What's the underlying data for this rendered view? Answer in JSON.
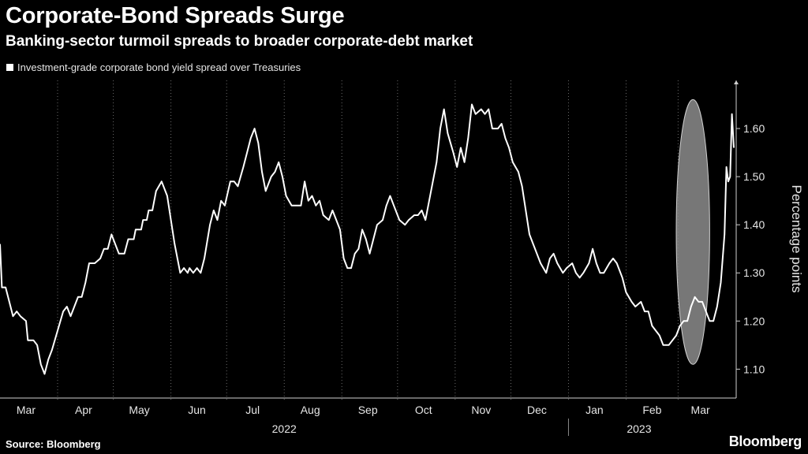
{
  "header": {
    "title": "Corporate-Bond Spreads Surge",
    "subtitle": "Banking-sector turmoil spreads to broader corporate-debt market"
  },
  "footer": {
    "source": "Source: Bloomberg",
    "brand": "Bloomberg"
  },
  "colors": {
    "background": "#000000",
    "line": "#ffffff",
    "grid": "#6b6b6b",
    "highlight_fill": "#8c8c8c"
  },
  "chart_data": {
    "type": "line",
    "title": "Corporate-Bond Spreads Surge",
    "subtitle": "Banking-sector turmoil spreads to broader corporate-debt market",
    "ylabel": "Percentage points",
    "y_axis_position": "right",
    "ylim": [
      1.04,
      1.7
    ],
    "yticks": [
      1.1,
      1.2,
      1.3,
      1.4,
      1.5,
      1.6
    ],
    "ytick_labels": [
      "1.10",
      "1.20",
      "1.30",
      "1.40",
      "1.50",
      "1.60"
    ],
    "grid": "vertical dotted at month boundaries",
    "legend_position": "top-left",
    "x_range": [
      "2022-03-01",
      "2023-03-17"
    ],
    "month_labels": [
      {
        "label": "Mar",
        "date": "2022-03-15"
      },
      {
        "label": "Apr",
        "date": "2022-04-15"
      },
      {
        "label": "May",
        "date": "2022-05-15"
      },
      {
        "label": "Jun",
        "date": "2022-06-15"
      },
      {
        "label": "Jul",
        "date": "2022-07-15"
      },
      {
        "label": "Aug",
        "date": "2022-08-15"
      },
      {
        "label": "Sep",
        "date": "2022-09-15"
      },
      {
        "label": "Oct",
        "date": "2022-10-15"
      },
      {
        "label": "Nov",
        "date": "2022-11-15"
      },
      {
        "label": "Dec",
        "date": "2022-12-15"
      },
      {
        "label": "Jan",
        "date": "2023-01-15"
      },
      {
        "label": "Feb",
        "date": "2023-02-15"
      },
      {
        "label": "Mar",
        "date": "2023-03-13"
      }
    ],
    "month_boundaries": [
      "2022-04-01",
      "2022-05-01",
      "2022-06-01",
      "2022-07-01",
      "2022-08-01",
      "2022-09-01",
      "2022-10-01",
      "2022-11-01",
      "2022-12-01",
      "2023-01-01",
      "2023-02-01",
      "2023-03-01"
    ],
    "year_labels": [
      {
        "label": "2022",
        "date": "2022-08-01"
      },
      {
        "label": "2023",
        "date": "2023-02-08"
      }
    ],
    "year_divider": "2023-01-01",
    "highlight": {
      "shape": "ellipse",
      "x_range": [
        "2023-02-28",
        "2023-03-18"
      ],
      "y_range": [
        1.11,
        1.66
      ]
    },
    "series": [
      {
        "name": "Investment-grade corporate bond yield spread over Treasuries",
        "points": [
          [
            "2022-03-01",
            1.36
          ],
          [
            "2022-03-02",
            1.27
          ],
          [
            "2022-03-04",
            1.27
          ],
          [
            "2022-03-06",
            1.24
          ],
          [
            "2022-03-08",
            1.21
          ],
          [
            "2022-03-10",
            1.22
          ],
          [
            "2022-03-12",
            1.21
          ],
          [
            "2022-03-15",
            1.2
          ],
          [
            "2022-03-16",
            1.16
          ],
          [
            "2022-03-19",
            1.16
          ],
          [
            "2022-03-21",
            1.15
          ],
          [
            "2022-03-23",
            1.11
          ],
          [
            "2022-03-25",
            1.09
          ],
          [
            "2022-03-27",
            1.12
          ],
          [
            "2022-03-29",
            1.14
          ],
          [
            "2022-04-01",
            1.18
          ],
          [
            "2022-04-04",
            1.22
          ],
          [
            "2022-04-06",
            1.23
          ],
          [
            "2022-04-08",
            1.21
          ],
          [
            "2022-04-10",
            1.23
          ],
          [
            "2022-04-12",
            1.25
          ],
          [
            "2022-04-14",
            1.25
          ],
          [
            "2022-04-16",
            1.28
          ],
          [
            "2022-04-18",
            1.32
          ],
          [
            "2022-04-21",
            1.32
          ],
          [
            "2022-04-24",
            1.33
          ],
          [
            "2022-04-26",
            1.35
          ],
          [
            "2022-04-28",
            1.35
          ],
          [
            "2022-04-30",
            1.38
          ],
          [
            "2022-05-02",
            1.36
          ],
          [
            "2022-05-04",
            1.34
          ],
          [
            "2022-05-07",
            1.34
          ],
          [
            "2022-05-09",
            1.37
          ],
          [
            "2022-05-12",
            1.37
          ],
          [
            "2022-05-13",
            1.39
          ],
          [
            "2022-05-16",
            1.39
          ],
          [
            "2022-05-17",
            1.41
          ],
          [
            "2022-05-19",
            1.41
          ],
          [
            "2022-05-20",
            1.43
          ],
          [
            "2022-05-22",
            1.43
          ],
          [
            "2022-05-24",
            1.47
          ],
          [
            "2022-05-27",
            1.49
          ],
          [
            "2022-05-30",
            1.46
          ],
          [
            "2022-06-01",
            1.41
          ],
          [
            "2022-06-03",
            1.36
          ],
          [
            "2022-06-06",
            1.3
          ],
          [
            "2022-06-08",
            1.31
          ],
          [
            "2022-06-10",
            1.3
          ],
          [
            "2022-06-11",
            1.31
          ],
          [
            "2022-06-13",
            1.3
          ],
          [
            "2022-06-15",
            1.31
          ],
          [
            "2022-06-17",
            1.3
          ],
          [
            "2022-06-19",
            1.33
          ],
          [
            "2022-06-22",
            1.4
          ],
          [
            "2022-06-24",
            1.43
          ],
          [
            "2022-06-26",
            1.41
          ],
          [
            "2022-06-28",
            1.45
          ],
          [
            "2022-06-30",
            1.44
          ],
          [
            "2022-07-03",
            1.49
          ],
          [
            "2022-07-05",
            1.49
          ],
          [
            "2022-07-07",
            1.48
          ],
          [
            "2022-07-10",
            1.52
          ],
          [
            "2022-07-12",
            1.55
          ],
          [
            "2022-07-14",
            1.58
          ],
          [
            "2022-07-16",
            1.6
          ],
          [
            "2022-07-18",
            1.57
          ],
          [
            "2022-07-20",
            1.51
          ],
          [
            "2022-07-22",
            1.47
          ],
          [
            "2022-07-25",
            1.5
          ],
          [
            "2022-07-27",
            1.51
          ],
          [
            "2022-07-29",
            1.53
          ],
          [
            "2022-07-31",
            1.5
          ],
          [
            "2022-08-02",
            1.46
          ],
          [
            "2022-08-05",
            1.44
          ],
          [
            "2022-08-08",
            1.44
          ],
          [
            "2022-08-10",
            1.44
          ],
          [
            "2022-08-12",
            1.49
          ],
          [
            "2022-08-14",
            1.45
          ],
          [
            "2022-08-16",
            1.46
          ],
          [
            "2022-08-18",
            1.44
          ],
          [
            "2022-08-20",
            1.45
          ],
          [
            "2022-08-22",
            1.42
          ],
          [
            "2022-08-25",
            1.41
          ],
          [
            "2022-08-27",
            1.43
          ],
          [
            "2022-08-29",
            1.41
          ],
          [
            "2022-08-31",
            1.39
          ],
          [
            "2022-09-02",
            1.33
          ],
          [
            "2022-09-04",
            1.31
          ],
          [
            "2022-09-06",
            1.31
          ],
          [
            "2022-09-08",
            1.34
          ],
          [
            "2022-09-10",
            1.35
          ],
          [
            "2022-09-12",
            1.39
          ],
          [
            "2022-09-14",
            1.37
          ],
          [
            "2022-09-16",
            1.34
          ],
          [
            "2022-09-18",
            1.37
          ],
          [
            "2022-09-20",
            1.4
          ],
          [
            "2022-09-23",
            1.41
          ],
          [
            "2022-09-25",
            1.44
          ],
          [
            "2022-09-27",
            1.46
          ],
          [
            "2022-09-29",
            1.44
          ],
          [
            "2022-10-02",
            1.41
          ],
          [
            "2022-10-05",
            1.4
          ],
          [
            "2022-10-07",
            1.41
          ],
          [
            "2022-10-10",
            1.42
          ],
          [
            "2022-10-12",
            1.42
          ],
          [
            "2022-10-14",
            1.43
          ],
          [
            "2022-10-16",
            1.41
          ],
          [
            "2022-10-18",
            1.45
          ],
          [
            "2022-10-20",
            1.49
          ],
          [
            "2022-10-22",
            1.53
          ],
          [
            "2022-10-24",
            1.6
          ],
          [
            "2022-10-26",
            1.64
          ],
          [
            "2022-10-28",
            1.59
          ],
          [
            "2022-10-31",
            1.55
          ],
          [
            "2022-11-02",
            1.52
          ],
          [
            "2022-11-04",
            1.56
          ],
          [
            "2022-11-06",
            1.53
          ],
          [
            "2022-11-08",
            1.58
          ],
          [
            "2022-11-10",
            1.65
          ],
          [
            "2022-11-12",
            1.63
          ],
          [
            "2022-11-15",
            1.64
          ],
          [
            "2022-11-17",
            1.63
          ],
          [
            "2022-11-19",
            1.64
          ],
          [
            "2022-11-21",
            1.6
          ],
          [
            "2022-11-24",
            1.6
          ],
          [
            "2022-11-26",
            1.61
          ],
          [
            "2022-11-28",
            1.58
          ],
          [
            "2022-11-30",
            1.56
          ],
          [
            "2022-12-02",
            1.53
          ],
          [
            "2022-12-05",
            1.51
          ],
          [
            "2022-12-07",
            1.48
          ],
          [
            "2022-12-09",
            1.43
          ],
          [
            "2022-12-11",
            1.38
          ],
          [
            "2022-12-13",
            1.36
          ],
          [
            "2022-12-15",
            1.34
          ],
          [
            "2022-12-17",
            1.32
          ],
          [
            "2022-12-20",
            1.3
          ],
          [
            "2022-12-22",
            1.33
          ],
          [
            "2022-12-24",
            1.34
          ],
          [
            "2022-12-26",
            1.32
          ],
          [
            "2022-12-29",
            1.3
          ],
          [
            "2022-12-31",
            1.31
          ],
          [
            "2023-01-03",
            1.32
          ],
          [
            "2023-01-05",
            1.3
          ],
          [
            "2023-01-07",
            1.29
          ],
          [
            "2023-01-09",
            1.3
          ],
          [
            "2023-01-12",
            1.32
          ],
          [
            "2023-01-14",
            1.35
          ],
          [
            "2023-01-16",
            1.32
          ],
          [
            "2023-01-18",
            1.3
          ],
          [
            "2023-01-20",
            1.3
          ],
          [
            "2023-01-23",
            1.32
          ],
          [
            "2023-01-25",
            1.33
          ],
          [
            "2023-01-27",
            1.32
          ],
          [
            "2023-01-30",
            1.29
          ],
          [
            "2023-02-01",
            1.26
          ],
          [
            "2023-02-04",
            1.24
          ],
          [
            "2023-02-06",
            1.23
          ],
          [
            "2023-02-09",
            1.24
          ],
          [
            "2023-02-11",
            1.22
          ],
          [
            "2023-02-13",
            1.22
          ],
          [
            "2023-02-15",
            1.19
          ],
          [
            "2023-02-17",
            1.18
          ],
          [
            "2023-02-19",
            1.17
          ],
          [
            "2023-02-21",
            1.15
          ],
          [
            "2023-02-24",
            1.15
          ],
          [
            "2023-02-26",
            1.16
          ],
          [
            "2023-02-28",
            1.17
          ],
          [
            "2023-03-02",
            1.19
          ],
          [
            "2023-03-04",
            1.2
          ],
          [
            "2023-03-06",
            1.2
          ],
          [
            "2023-03-08",
            1.23
          ],
          [
            "2023-03-10",
            1.25
          ],
          [
            "2023-03-12",
            1.24
          ],
          [
            "2023-03-14",
            1.24
          ],
          [
            "2023-03-16",
            1.22
          ],
          [
            "2023-03-18",
            1.2
          ],
          [
            "2023-03-20",
            1.2
          ],
          [
            "2023-03-22",
            1.23
          ],
          [
            "2023-03-24",
            1.28
          ],
          [
            "2023-03-26",
            1.38
          ],
          [
            "2023-03-27",
            1.52
          ],
          [
            "2023-03-28",
            1.49
          ],
          [
            "2023-03-29",
            1.5
          ],
          [
            "2023-03-30",
            1.63
          ],
          [
            "2023-03-31",
            1.56
          ]
        ]
      }
    ]
  }
}
